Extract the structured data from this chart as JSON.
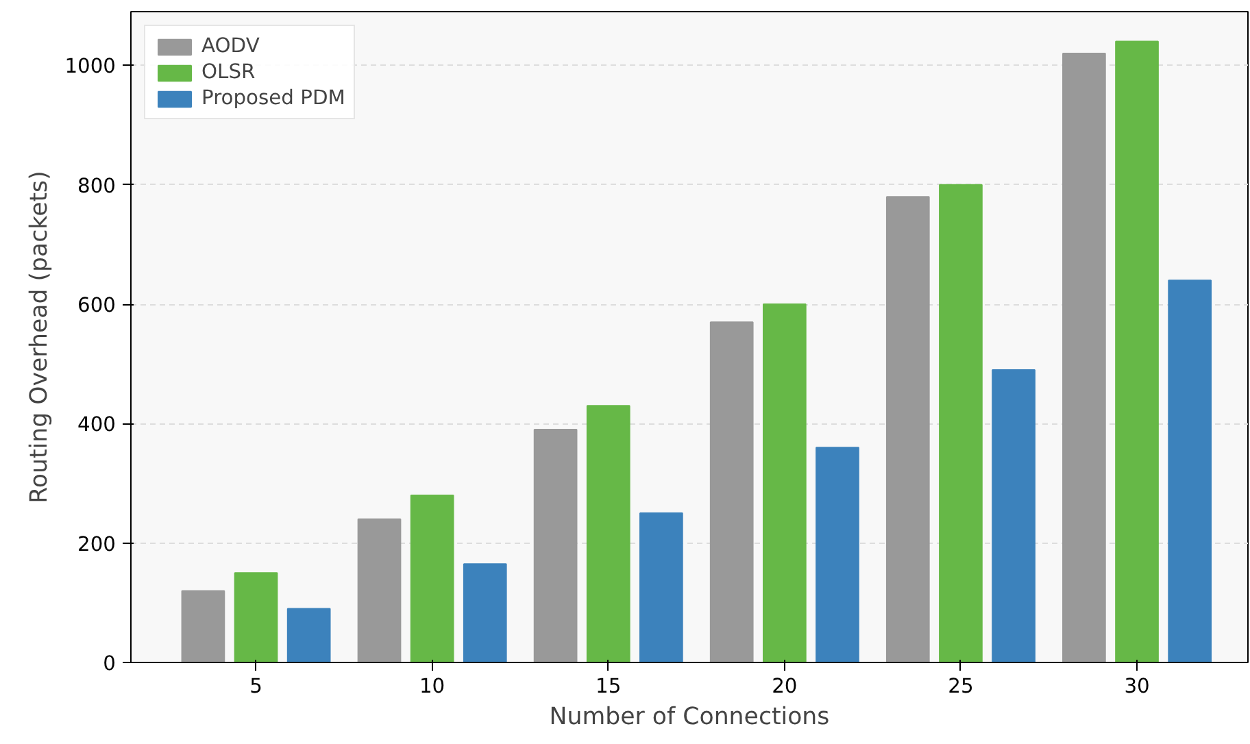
{
  "chart_data": {
    "type": "bar",
    "xlabel": "Number of Connections",
    "ylabel": "Routing Overhead (packets)",
    "categories": [
      "5",
      "10",
      "15",
      "20",
      "25",
      "30"
    ],
    "series": [
      {
        "name": "AODV",
        "color": "#999999",
        "values": [
          120,
          240,
          390,
          570,
          780,
          1020
        ]
      },
      {
        "name": "OLSR",
        "color": "#66b847",
        "values": [
          150,
          280,
          430,
          600,
          800,
          1040
        ]
      },
      {
        "name": "Proposed PDM",
        "color": "#3c82bc",
        "values": [
          90,
          165,
          250,
          360,
          490,
          640
        ]
      }
    ],
    "ylim": [
      0,
      1090
    ],
    "yticks": [
      0,
      200,
      400,
      600,
      800,
      1000
    ],
    "grid": "y",
    "legend": "top left"
  }
}
